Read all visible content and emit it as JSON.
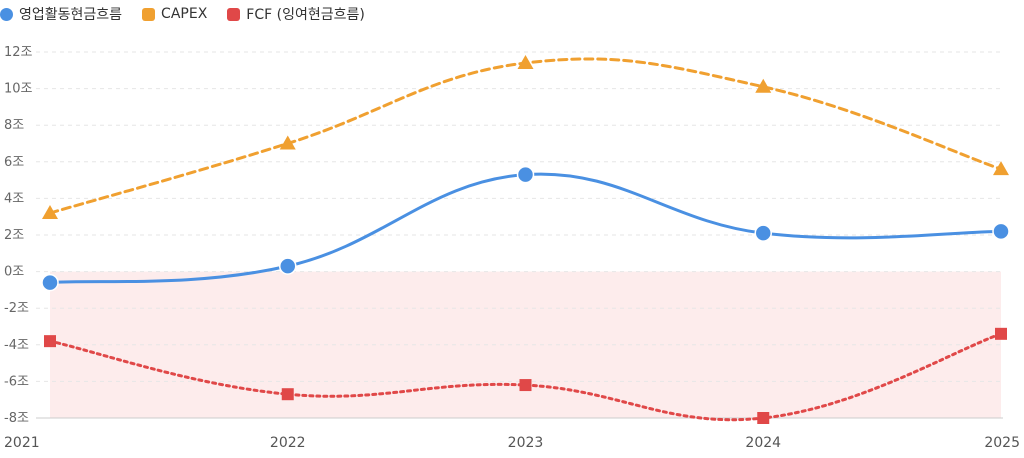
{
  "chart_data": {
    "type": "line",
    "categories": [
      "2021",
      "2022",
      "2023",
      "2024",
      "2025"
    ],
    "series": [
      {
        "name": "영업활동현금흐름",
        "color": "#4a90e2",
        "marker": "circle",
        "line_style": "solid",
        "values": [
          -0.6,
          0.3,
          5.3,
          2.1,
          2.2
        ]
      },
      {
        "name": "CAPEX",
        "color": "#f0a030",
        "marker": "triangle",
        "line_style": "dashed",
        "values": [
          3.2,
          7.0,
          11.4,
          10.1,
          5.6
        ]
      },
      {
        "name": "FCF (잉여현금흐름)",
        "color": "#e04848",
        "marker": "square",
        "line_style": "dotted",
        "values": [
          -3.8,
          -6.7,
          -6.2,
          -8.0,
          -3.4
        ]
      }
    ],
    "y_ticks": [
      12,
      10,
      8,
      6,
      4,
      2,
      0,
      -2,
      -4,
      -6,
      -8
    ],
    "y_tick_labels": [
      "12조",
      "10조",
      "8조",
      "6조",
      "4조",
      "2조",
      "0조",
      "-2조",
      "-4조",
      "-6조",
      "-8조"
    ],
    "ylim": [
      -8,
      12
    ],
    "grid": true,
    "negative_region_fill": "#fdecec",
    "legend_position": "top-left",
    "title": "",
    "xlabel": "",
    "ylabel": ""
  }
}
